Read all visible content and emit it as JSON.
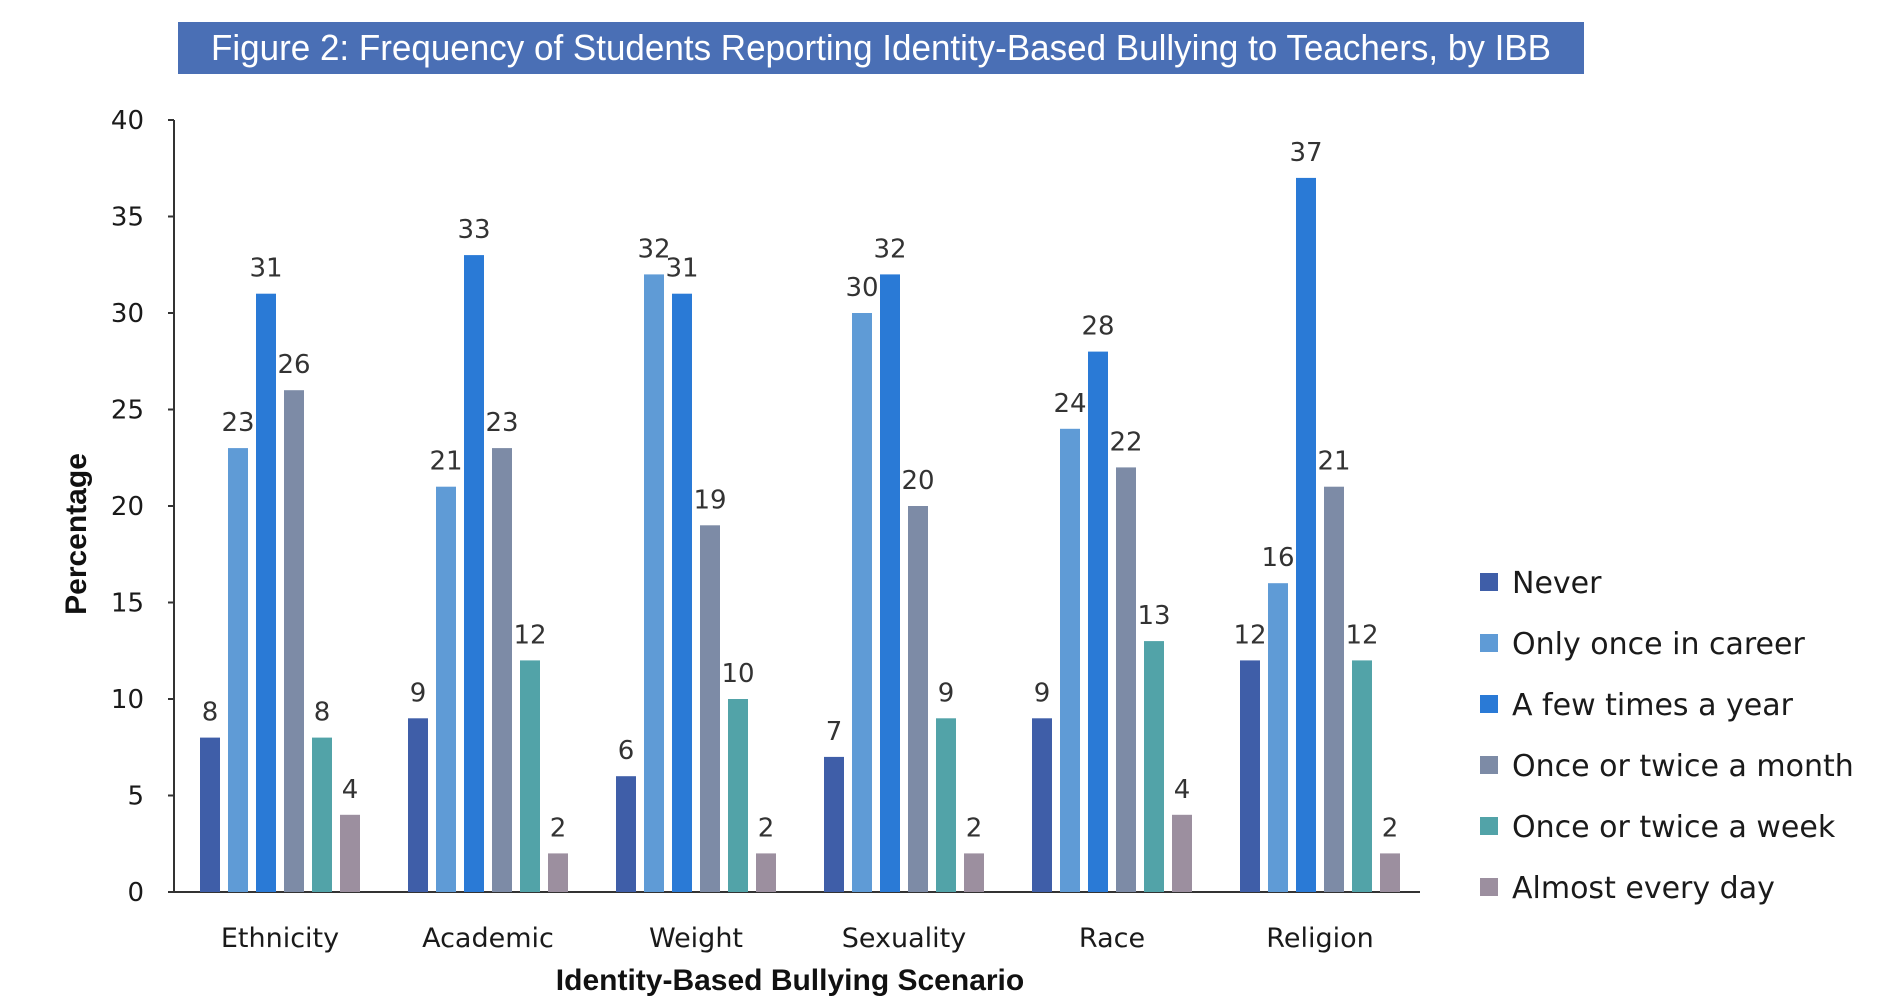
{
  "chart_data": {
    "type": "bar",
    "title": "Figure 2: Frequency of Students Reporting Identity-Based Bullying to Teachers, by IBB",
    "xlabel": "Identity-Based Bullying Scenario",
    "ylabel": "Percentage",
    "ylim": [
      0,
      40
    ],
    "yticks": [
      0,
      5,
      10,
      15,
      20,
      25,
      30,
      35,
      40
    ],
    "grid": false,
    "legend_position": "right",
    "title_bg_color": "#4a6fb5",
    "categories": [
      "Ethnicity",
      "Academic",
      "Weight",
      "Sexuality",
      "Race",
      "Religion"
    ],
    "series": [
      {
        "name": "Never",
        "color": "#3f5ea8",
        "values": [
          8,
          9,
          6,
          7,
          9,
          12
        ]
      },
      {
        "name": "Only once in career",
        "color": "#5f9bd6",
        "values": [
          23,
          21,
          32,
          30,
          24,
          16
        ]
      },
      {
        "name": "A few times a year",
        "color": "#2a7ad6",
        "values": [
          31,
          33,
          31,
          32,
          28,
          37
        ]
      },
      {
        "name": "Once or twice a month",
        "color": "#7d8ba6",
        "values": [
          26,
          23,
          19,
          20,
          22,
          21
        ]
      },
      {
        "name": "Once or twice a week",
        "color": "#52a3a8",
        "values": [
          8,
          12,
          10,
          9,
          13,
          12
        ]
      },
      {
        "name": "Almost every day",
        "color": "#9c8f9f",
        "values": [
          4,
          2,
          2,
          2,
          4,
          2
        ]
      }
    ]
  }
}
